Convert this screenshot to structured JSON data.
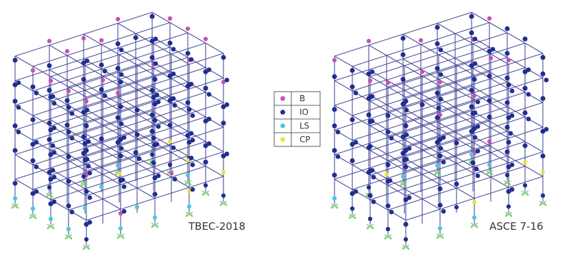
{
  "models": [
    {
      "label": "TBEC-2018"
    },
    {
      "label": "ASCE 7-16"
    }
  ],
  "legend": [
    {
      "code": "B",
      "color": "#c94fb5"
    },
    {
      "code": "IO",
      "color": "#1f2f8f"
    },
    {
      "code": "LS",
      "color": "#4fc7d9"
    },
    {
      "code": "CP",
      "color": "#e9e23a"
    }
  ],
  "colors": {
    "frame": "#4a4a9a",
    "support": "#7cc47c"
  }
}
